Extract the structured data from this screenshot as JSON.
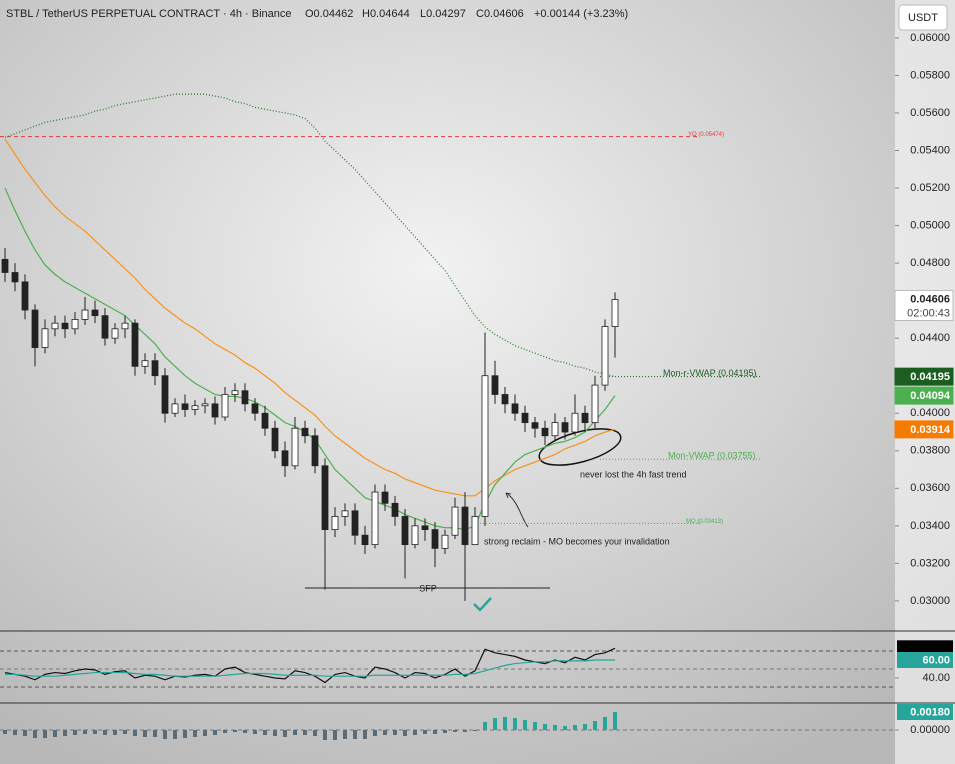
{
  "header": {
    "symbol": "STBL / TetherUS PERPETUAL CONTRACT · 4h · Binance",
    "open": "O0.04462",
    "high": "H0.04644",
    "low": "L0.04297",
    "close": "C0.04606",
    "change": "+0.00144 (+3.23%)"
  },
  "currency": "USDT",
  "annotations": [
    "SFP",
    "strong reclaim - MO becomes your invalidation",
    "never lost the 4h fast trend"
  ],
  "chart_data": [
    {
      "type": "candlestick",
      "open": [
        0.0482,
        0.0475,
        0.047,
        0.0455,
        0.0435,
        0.0445,
        0.0448,
        0.0445,
        0.045,
        0.0455,
        0.0452,
        0.044,
        0.0445,
        0.0448,
        0.0425,
        0.0428,
        0.042,
        0.04,
        0.0405,
        0.0402,
        0.0404,
        0.0405,
        0.0398,
        0.041,
        0.0412,
        0.0405,
        0.04,
        0.0392,
        0.038,
        0.0372,
        0.0392,
        0.0388,
        0.0372,
        0.0338,
        0.0345,
        0.0348,
        0.0335,
        0.033,
        0.0358,
        0.0352,
        0.0345,
        0.033,
        0.034,
        0.0338,
        0.0328,
        0.0335,
        0.035,
        0.033,
        0.0345,
        0.042,
        0.041,
        0.0405,
        0.04,
        0.0395,
        0.0392,
        0.0388,
        0.0395,
        0.039,
        0.04,
        0.0395,
        0.0415,
        0.04462
      ],
      "high": [
        0.0488,
        0.048,
        0.0474,
        0.0458,
        0.045,
        0.0452,
        0.0452,
        0.0454,
        0.0462,
        0.046,
        0.0456,
        0.0448,
        0.0452,
        0.045,
        0.0432,
        0.0432,
        0.0424,
        0.0408,
        0.041,
        0.0407,
        0.0408,
        0.0409,
        0.0414,
        0.0416,
        0.0416,
        0.0408,
        0.0404,
        0.0396,
        0.0385,
        0.0398,
        0.0396,
        0.0392,
        0.0376,
        0.035,
        0.0352,
        0.0352,
        0.034,
        0.0362,
        0.0362,
        0.0356,
        0.0349,
        0.0344,
        0.0344,
        0.0342,
        0.0338,
        0.0355,
        0.0358,
        0.035,
        0.0443,
        0.0428,
        0.0414,
        0.041,
        0.0404,
        0.0398,
        0.0396,
        0.04,
        0.0398,
        0.041,
        0.0404,
        0.042,
        0.045,
        0.04644
      ],
      "low": [
        0.047,
        0.0465,
        0.045,
        0.0425,
        0.0432,
        0.0441,
        0.044,
        0.0442,
        0.0447,
        0.0448,
        0.0436,
        0.0437,
        0.044,
        0.042,
        0.0421,
        0.0415,
        0.0395,
        0.0398,
        0.0398,
        0.0399,
        0.04,
        0.0394,
        0.0396,
        0.0406,
        0.0401,
        0.0396,
        0.0388,
        0.0376,
        0.0366,
        0.037,
        0.0384,
        0.0368,
        0.0306,
        0.0334,
        0.034,
        0.033,
        0.0325,
        0.0328,
        0.0348,
        0.034,
        0.0312,
        0.0328,
        0.0332,
        0.0318,
        0.0325,
        0.0333,
        0.03,
        0.033,
        0.034,
        0.0405,
        0.04,
        0.0396,
        0.039,
        0.0387,
        0.0383,
        0.0385,
        0.0386,
        0.0388,
        0.039,
        0.0392,
        0.0412,
        0.04297
      ],
      "close": [
        0.0475,
        0.047,
        0.0455,
        0.0435,
        0.0445,
        0.0448,
        0.0445,
        0.045,
        0.0455,
        0.0452,
        0.044,
        0.0445,
        0.0448,
        0.0425,
        0.0428,
        0.042,
        0.04,
        0.0405,
        0.0402,
        0.0404,
        0.0405,
        0.0398,
        0.041,
        0.0412,
        0.0405,
        0.04,
        0.0392,
        0.038,
        0.0372,
        0.0392,
        0.0388,
        0.0372,
        0.0338,
        0.0345,
        0.0348,
        0.0335,
        0.033,
        0.0358,
        0.0352,
        0.0345,
        0.033,
        0.034,
        0.0338,
        0.0328,
        0.0335,
        0.035,
        0.033,
        0.0345,
        0.042,
        0.041,
        0.0405,
        0.04,
        0.0395,
        0.0392,
        0.0388,
        0.0395,
        0.039,
        0.04,
        0.0395,
        0.0415,
        0.04462,
        0.04606
      ],
      "up_color": "#ffffff",
      "down_color": "#222222",
      "wick_color": "#222222",
      "series": [
        {
          "color": "#f7931a",
          "style": "solid",
          "values": [
            0.0546,
            0.0538,
            0.053,
            0.0523,
            0.0516,
            0.051,
            0.0505,
            0.0501,
            0.0497,
            0.0492,
            0.0487,
            0.0482,
            0.0477,
            0.0472,
            0.0466,
            0.0461,
            0.0456,
            0.0452,
            0.0448,
            0.0445,
            0.0441,
            0.0437,
            0.0434,
            0.0431,
            0.0427,
            0.0424,
            0.042,
            0.0416,
            0.0411,
            0.0407,
            0.0403,
            0.0399,
            0.0393,
            0.0388,
            0.0384,
            0.038,
            0.0376,
            0.0373,
            0.037,
            0.0368,
            0.0365,
            0.0363,
            0.0361,
            0.0359,
            0.0358,
            0.0357,
            0.0356,
            0.0356,
            0.036,
            0.0364,
            0.0367,
            0.037,
            0.0372,
            0.0374,
            0.0376,
            0.0378,
            0.0381,
            0.0383,
            0.0385,
            0.0388,
            0.039,
            0.03914
          ]
        },
        {
          "color": "#4caf50",
          "style": "solid",
          "values": [
            0.052,
            0.0508,
            0.0497,
            0.0487,
            0.0479,
            0.0474,
            0.047,
            0.0467,
            0.0464,
            0.0461,
            0.0458,
            0.0455,
            0.0452,
            0.0447,
            0.0442,
            0.0437,
            0.043,
            0.0425,
            0.042,
            0.0416,
            0.0413,
            0.041,
            0.0409,
            0.0409,
            0.0408,
            0.0406,
            0.0403,
            0.0399,
            0.0395,
            0.0393,
            0.039,
            0.0386,
            0.0378,
            0.037,
            0.0365,
            0.036,
            0.0355,
            0.0353,
            0.0351,
            0.0349,
            0.0346,
            0.0344,
            0.0342,
            0.034,
            0.0339,
            0.0339,
            0.0338,
            0.034,
            0.0352,
            0.0362,
            0.0368,
            0.0374,
            0.0378,
            0.038,
            0.0382,
            0.0384,
            0.0385,
            0.0387,
            0.039,
            0.0396,
            0.0402,
            0.04094
          ]
        },
        {
          "color": "#2e7d32",
          "style": "dotted",
          "values": [
            0.0547,
            0.0549,
            0.0551,
            0.0553,
            0.0555,
            0.0556,
            0.0557,
            0.0558,
            0.0559,
            0.0561,
            0.0562,
            0.0564,
            0.0565,
            0.0566,
            0.0567,
            0.0568,
            0.0569,
            0.057,
            0.057,
            0.057,
            0.057,
            0.0569,
            0.0568,
            0.0566,
            0.0565,
            0.0563,
            0.0562,
            0.0561,
            0.056,
            0.0559,
            0.0557,
            0.0552,
            0.0545,
            0.054,
            0.0535,
            0.053,
            0.0524,
            0.0518,
            0.0512,
            0.0506,
            0.05,
            0.0494,
            0.0488,
            0.0482,
            0.0476,
            0.0468,
            0.046,
            0.0452,
            0.0446,
            0.0442,
            0.0439,
            0.0436,
            0.0434,
            0.0432,
            0.043,
            0.0428,
            0.0427,
            0.0425,
            0.0424,
            0.0422,
            0.0421,
            0.04195
          ]
        }
      ],
      "levels": [
        {
          "label": "YO (0.05474)",
          "value": 0.05474,
          "color": "#e53935"
        },
        {
          "label": "Mon-r-VWAP (0.04195)",
          "value": 0.04195,
          "color": "#1b5e20"
        },
        {
          "label": "Mon-VWAP (0.03755)",
          "value": 0.03755,
          "color": "#4caf50"
        },
        {
          "label": "MO (0.03413)",
          "value": 0.03413,
          "color": "#4caf50"
        }
      ],
      "price_tags": [
        {
          "value": 0.04606,
          "countdown": "02:00:43",
          "color": "#ffffff"
        },
        {
          "value": 0.04195,
          "color": "#1b5e20"
        },
        {
          "value": 0.04094,
          "color": "#4caf50"
        },
        {
          "value": 0.03914,
          "color": "#f57c00"
        }
      ],
      "ylim": [
        0.02845,
        0.06202
      ],
      "yticks": [
        {
          "value": 0.03,
          "label": "0.03000"
        },
        {
          "value": 0.032,
          "label": "0.03200"
        },
        {
          "value": 0.034,
          "label": "0.03400"
        },
        {
          "value": 0.036,
          "label": "0.03600"
        },
        {
          "value": 0.038,
          "label": "0.03800"
        },
        {
          "value": 0.04,
          "label": "0.04000"
        },
        {
          "value": 0.044,
          "label": "0.04400"
        },
        {
          "value": 0.048,
          "label": "0.04800"
        },
        {
          "value": 0.05,
          "label": "0.05000"
        },
        {
          "value": 0.052,
          "label": "0.05200"
        },
        {
          "value": 0.054,
          "label": "0.05400"
        },
        {
          "value": 0.056,
          "label": "0.05600"
        },
        {
          "value": 0.058,
          "label": "0.05800"
        },
        {
          "value": 0.06,
          "label": "0.06000"
        }
      ],
      "grid": false
    },
    {
      "type": "line",
      "series": [
        {
          "color": "#111111",
          "values": [
            46,
            44,
            42,
            38,
            44,
            46,
            45,
            48,
            50,
            49,
            44,
            47,
            48,
            40,
            43,
            42,
            38,
            42,
            41,
            43,
            44,
            42,
            50,
            52,
            46,
            44,
            42,
            40,
            39,
            48,
            46,
            42,
            35,
            44,
            46,
            42,
            40,
            52,
            50,
            46,
            40,
            46,
            45,
            40,
            44,
            50,
            42,
            48,
            72,
            68,
            66,
            64,
            60,
            58,
            56,
            60,
            57,
            63,
            60,
            66,
            68,
            72.99
          ]
        },
        {
          "color": "#26a69a",
          "values": [
            44,
            44,
            43,
            42,
            42,
            42,
            43,
            44,
            45,
            46,
            46,
            46,
            46,
            45,
            44,
            44,
            43,
            42,
            42,
            42,
            42,
            42,
            43,
            44,
            45,
            45,
            45,
            44,
            43,
            43,
            43,
            43,
            42,
            42,
            42,
            42,
            42,
            43,
            43,
            43,
            43,
            43,
            43,
            43,
            43,
            44,
            44,
            45,
            48,
            51,
            54,
            56,
            57,
            58,
            58,
            59,
            59,
            59,
            59,
            60,
            60,
            60
          ]
        }
      ],
      "ylim": [
        13.3,
        90
      ],
      "yticks": [
        {
          "value": 40,
          "label": "40.00"
        }
      ],
      "tags": [
        {
          "value": 72.99,
          "color": "#000000"
        },
        {
          "value": 60,
          "label": "60.00",
          "color": "#26a69a"
        }
      ]
    },
    {
      "type": "bar",
      "values": [
        -0.0004,
        -0.0005,
        -0.0006,
        -0.0008,
        -0.0008,
        -0.0007,
        -0.0006,
        -0.0005,
        -0.0004,
        -0.0004,
        -0.0005,
        -0.0005,
        -0.0004,
        -0.0006,
        -0.0007,
        -0.0007,
        -0.0009,
        -0.0009,
        -0.0008,
        -0.0007,
        -0.0006,
        -0.0005,
        -0.0003,
        -0.0002,
        -0.0003,
        -0.0004,
        -0.0005,
        -0.0006,
        -0.0007,
        -0.0005,
        -0.0005,
        -0.0006,
        -0.001,
        -0.001,
        -0.0009,
        -0.0009,
        -0.0009,
        -0.0006,
        -0.0005,
        -0.0005,
        -0.0006,
        -0.0005,
        -0.0004,
        -0.0004,
        -0.0003,
        -0.0002,
        -0.0002,
        -0.0001,
        0.0008,
        0.0012,
        0.0013,
        0.0012,
        0.001,
        0.0008,
        0.0006,
        0.0005,
        0.0004,
        0.0005,
        0.0006,
        0.0009,
        0.0013,
        0.0018
      ],
      "positive_color": "#26a69a",
      "negative_color": "#5c6b7a",
      "ylim": [
        -0.0034,
        0.0025
      ],
      "yticks": [
        {
          "value": 0,
          "label": "0.00000"
        }
      ],
      "tags": [
        {
          "value": 0.0018,
          "label": "0.00180",
          "color": "#26a69a"
        }
      ]
    }
  ]
}
